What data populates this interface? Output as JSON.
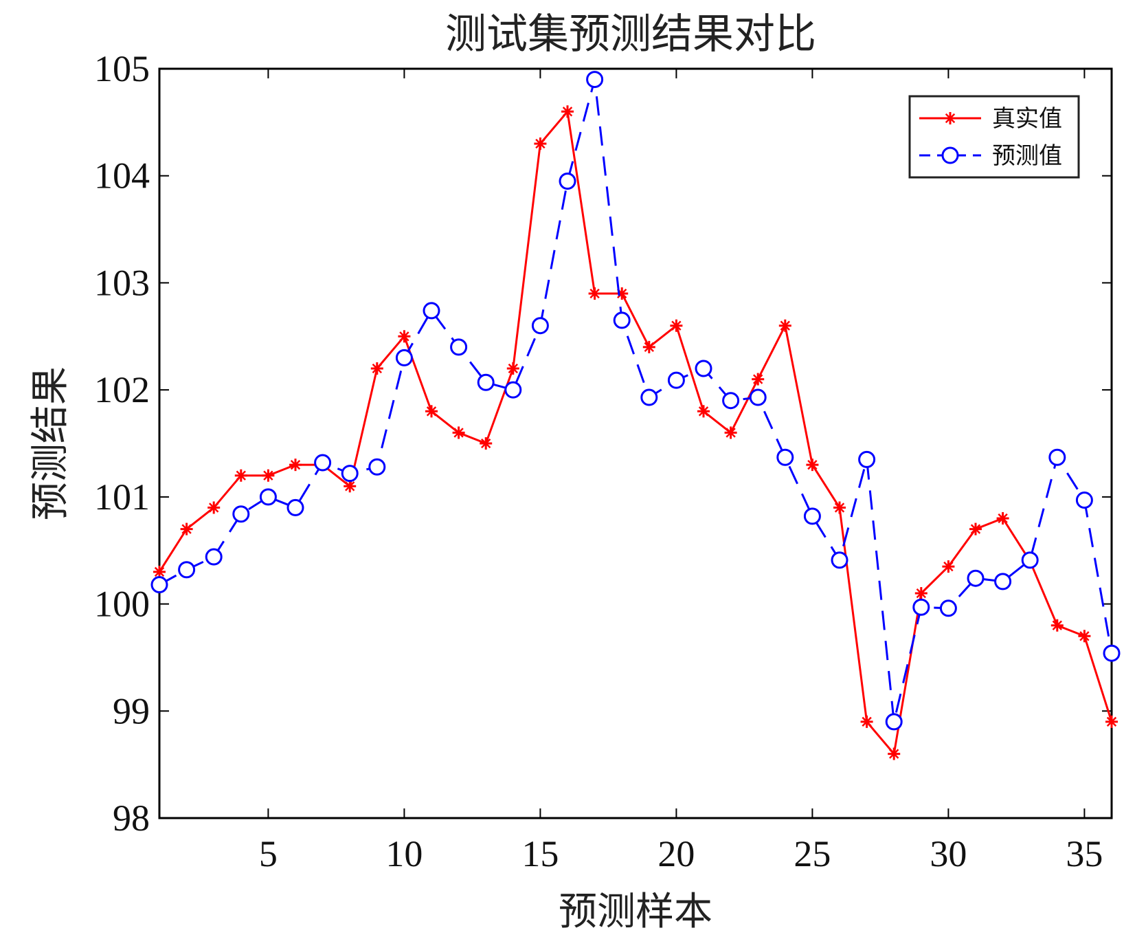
{
  "chart_data": {
    "type": "line",
    "title": "测试集预测结果对比",
    "xlabel": "预测样本",
    "ylabel": "预测结果",
    "xlim": [
      1,
      36
    ],
    "ylim": [
      98,
      105
    ],
    "xticks": [
      5,
      10,
      15,
      20,
      25,
      30,
      35
    ],
    "yticks": [
      98,
      99,
      100,
      101,
      102,
      103,
      104,
      105
    ],
    "grid": false,
    "legend_position": "top-right",
    "x": [
      1,
      2,
      3,
      4,
      5,
      6,
      7,
      8,
      9,
      10,
      11,
      12,
      13,
      14,
      15,
      16,
      17,
      18,
      19,
      20,
      21,
      22,
      23,
      24,
      25,
      26,
      27,
      28,
      29,
      30,
      31,
      32,
      33,
      34,
      35,
      36
    ],
    "series": [
      {
        "name": "真实值",
        "color": "#ff0000",
        "line_style": "solid",
        "marker": "asterisk",
        "values": [
          100.3,
          100.7,
          100.9,
          101.2,
          101.2,
          101.3,
          101.3,
          101.1,
          102.2,
          102.5,
          101.8,
          101.6,
          101.5,
          102.2,
          104.3,
          104.6,
          102.9,
          102.9,
          102.4,
          102.6,
          101.8,
          101.6,
          102.1,
          102.6,
          101.3,
          100.9,
          98.9,
          98.6,
          100.1,
          100.35,
          100.7,
          100.8,
          100.4,
          99.8,
          99.7,
          98.9
        ]
      },
      {
        "name": "预测值",
        "color": "#0000ff",
        "line_style": "dashed",
        "marker": "circle",
        "values": [
          100.18,
          100.32,
          100.44,
          100.84,
          101.0,
          100.9,
          101.32,
          101.22,
          101.28,
          102.3,
          102.74,
          102.4,
          102.07,
          102.0,
          102.6,
          103.95,
          104.9,
          102.65,
          101.93,
          102.09,
          102.2,
          101.9,
          101.93,
          101.37,
          100.82,
          100.41,
          101.35,
          98.9,
          99.97,
          99.96,
          100.24,
          100.21,
          100.41,
          101.37,
          100.97,
          99.54
        ]
      }
    ]
  }
}
